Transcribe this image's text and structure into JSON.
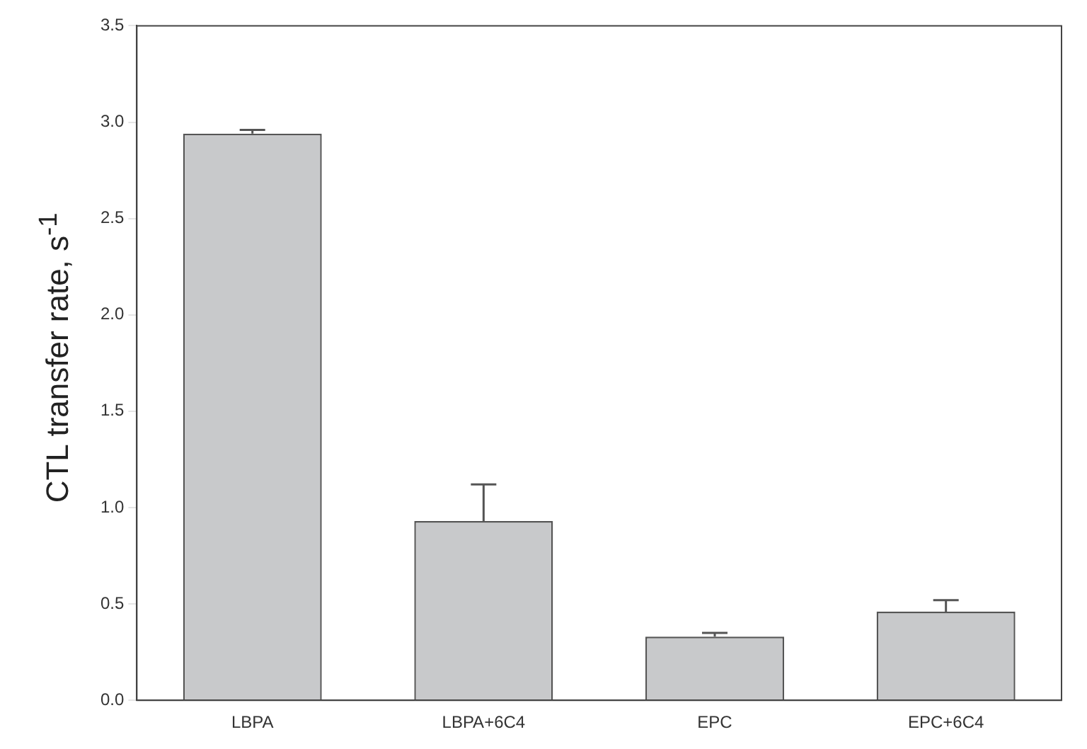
{
  "chart_data": {
    "type": "bar",
    "ylabel": "CTL transfer rate, s$^{-1}$",
    "categories": [
      "LBPA",
      "LBPA+6C4",
      "EPC",
      "EPC+6C4"
    ],
    "values": [
      2.94,
      0.93,
      0.33,
      0.46
    ],
    "errors": [
      [
        2.94,
        2.96
      ],
      [
        0.93,
        1.12
      ],
      [
        0.33,
        0.35
      ],
      [
        0.46,
        0.52
      ]
    ],
    "color": "#c8c9cb",
    "ylim": [
      0,
      3.5
    ],
    "yticks": [
      {
        "value": 0,
        "label": "0.0"
      },
      0.5,
      {
        "value": 1,
        "label": "1.0"
      },
      1.5,
      {
        "value": 2,
        "label": "2.0"
      },
      2.5,
      {
        "value": 3,
        "label": "3.0"
      },
      3.5
    ],
    "grid": false,
    "legend": false
  }
}
